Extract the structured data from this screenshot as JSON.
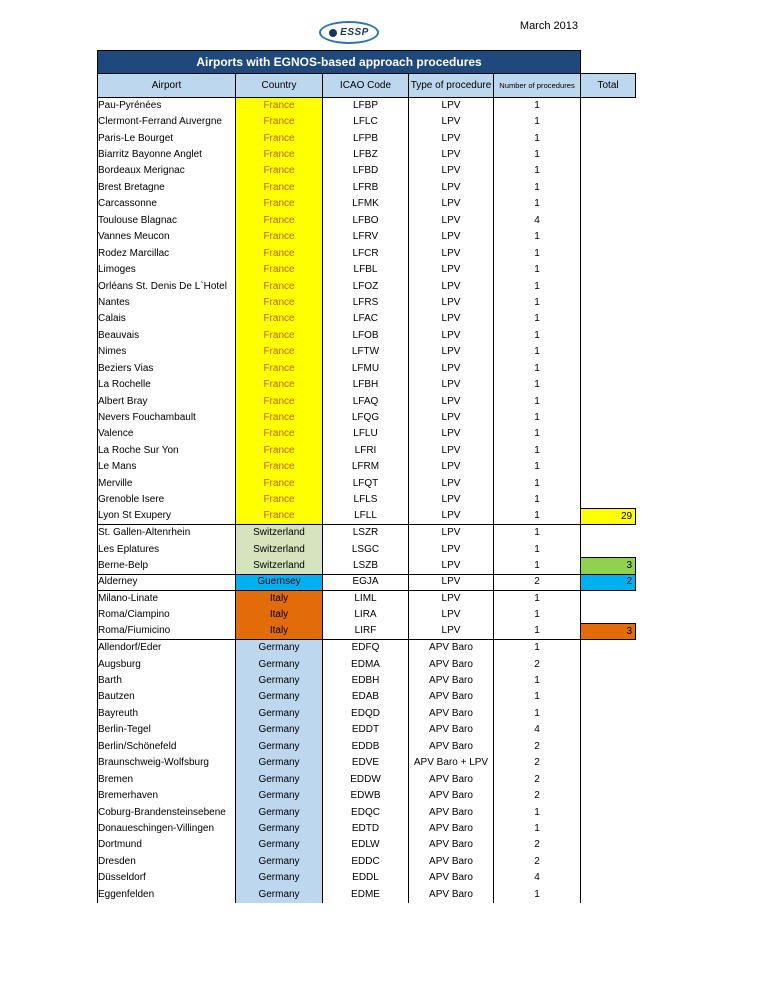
{
  "page": {
    "date": "March 2013",
    "logo_text": "ESSP"
  },
  "colors": {
    "title_bar": "#1F497D",
    "header_fill": "#BDD7EE"
  },
  "table": {
    "title": "Airports with EGNOS-based approach procedures",
    "columns": [
      "Airport",
      "Country",
      "ICAO Code",
      "Type of procedure",
      "Number of procedures",
      "Total"
    ],
    "groups": [
      {
        "country": "France",
        "country_bg": "#FFFF00",
        "country_text": "#C06000",
        "total": "29",
        "total_bg": "#FFFF00",
        "rows": [
          {
            "airport": "Pau-Pyrénées",
            "icao": "LFBP",
            "type": "LPV",
            "count": "1"
          },
          {
            "airport": "Clermont-Ferrand Auvergne",
            "icao": "LFLC",
            "type": "LPV",
            "count": "1"
          },
          {
            "airport": "Paris-Le Bourget",
            "icao": "LFPB",
            "type": "LPV",
            "count": "1"
          },
          {
            "airport": "Biarritz Bayonne Anglet",
            "icao": "LFBZ",
            "type": "LPV",
            "count": "1"
          },
          {
            "airport": "Bordeaux Merignac",
            "icao": "LFBD",
            "type": "LPV",
            "count": "1"
          },
          {
            "airport": "Brest Bretagne",
            "icao": "LFRB",
            "type": "LPV",
            "count": "1"
          },
          {
            "airport": "Carcassonne",
            "icao": "LFMK",
            "type": "LPV",
            "count": "1"
          },
          {
            "airport": "Toulouse Blagnac",
            "icao": "LFBO",
            "type": "LPV",
            "count": "4"
          },
          {
            "airport": "Vannes Meucon",
            "icao": "LFRV",
            "type": "LPV",
            "count": "1"
          },
          {
            "airport": "Rodez Marcillac",
            "icao": "LFCR",
            "type": "LPV",
            "count": "1"
          },
          {
            "airport": "Limoges",
            "icao": "LFBL",
            "type": "LPV",
            "count": "1"
          },
          {
            "airport": "Orléans St. Denis De L`Hotel",
            "icao": "LFOZ",
            "type": "LPV",
            "count": "1"
          },
          {
            "airport": "Nantes",
            "icao": "LFRS",
            "type": "LPV",
            "count": "1"
          },
          {
            "airport": "Calais",
            "icao": "LFAC",
            "type": "LPV",
            "count": "1"
          },
          {
            "airport": "Beauvais",
            "icao": "LFOB",
            "type": "LPV",
            "count": "1"
          },
          {
            "airport": "Nimes",
            "icao": "LFTW",
            "type": "LPV",
            "count": "1"
          },
          {
            "airport": "Beziers Vias",
            "icao": "LFMU",
            "type": "LPV",
            "count": "1"
          },
          {
            "airport": "La Rochelle",
            "icao": "LFBH",
            "type": "LPV",
            "count": "1"
          },
          {
            "airport": "Albert Bray",
            "icao": "LFAQ",
            "type": "LPV",
            "count": "1"
          },
          {
            "airport": "Nevers Fouchambault",
            "icao": "LFQG",
            "type": "LPV",
            "count": "1"
          },
          {
            "airport": "Valence",
            "icao": "LFLU",
            "type": "LPV",
            "count": "1"
          },
          {
            "airport": "La Roche Sur Yon",
            "icao": "LFRI",
            "type": "LPV",
            "count": "1"
          },
          {
            "airport": "Le Mans",
            "icao": "LFRM",
            "type": "LPV",
            "count": "1"
          },
          {
            "airport": "Merville",
            "icao": "LFQT",
            "type": "LPV",
            "count": "1"
          },
          {
            "airport": "Grenoble Isere",
            "icao": "LFLS",
            "type": "LPV",
            "count": "1"
          },
          {
            "airport": "Lyon St Exupery",
            "icao": "LFLL",
            "type": "LPV",
            "count": "1"
          }
        ]
      },
      {
        "country": "Switzerland",
        "country_bg": "#D6E3BC",
        "country_text": "#000000",
        "total": "3",
        "total_bg": "#92D050",
        "rows": [
          {
            "airport": "St. Gallen-Altenrhein",
            "icao": "LSZR",
            "type": "LPV",
            "count": "1"
          },
          {
            "airport": "Les Eplatures",
            "icao": "LSGC",
            "type": "LPV",
            "count": "1"
          },
          {
            "airport": "Berne-Belp",
            "icao": "LSZB",
            "type": "LPV",
            "count": "1"
          }
        ]
      },
      {
        "country": "Guernsey",
        "country_bg": "#00B0F0",
        "country_text": "#000000",
        "total": "2",
        "total_bg": "#00B0F0",
        "rows": [
          {
            "airport": "Alderney",
            "icao": "EGJA",
            "type": "LPV",
            "count": "2"
          }
        ]
      },
      {
        "country": "Italy",
        "country_bg": "#E36C0A",
        "country_text": "#000000",
        "total": "3",
        "total_bg": "#E36C0A",
        "rows": [
          {
            "airport": "Milano-Linate",
            "icao": "LIML",
            "type": "LPV",
            "count": "1"
          },
          {
            "airport": "Roma/Ciampino",
            "icao": "LIRA",
            "type": "LPV",
            "count": "1"
          },
          {
            "airport": "Roma/Fiumicino",
            "icao": "LIRF",
            "type": "LPV",
            "count": "1"
          }
        ]
      },
      {
        "country": "Germany",
        "country_bg": "#BDD7EE",
        "country_text": "#000000",
        "total": null,
        "total_bg": null,
        "rows": [
          {
            "airport": "Allendorf/Eder",
            "icao": "EDFQ",
            "type": "APV Baro",
            "count": "1"
          },
          {
            "airport": "Augsburg",
            "icao": "EDMA",
            "type": "APV Baro",
            "count": "2"
          },
          {
            "airport": "Barth",
            "icao": "EDBH",
            "type": "APV Baro",
            "count": "1"
          },
          {
            "airport": "Bautzen",
            "icao": "EDAB",
            "type": "APV Baro",
            "count": "1"
          },
          {
            "airport": "Bayreuth",
            "icao": "EDQD",
            "type": "APV Baro",
            "count": "1"
          },
          {
            "airport": "Berlin-Tegel",
            "icao": "EDDT",
            "type": "APV Baro",
            "count": "4"
          },
          {
            "airport": "Berlin/Schönefeld",
            "icao": "EDDB",
            "type": "APV Baro",
            "count": "2"
          },
          {
            "airport": "Braunschweig-Wolfsburg",
            "icao": "EDVE",
            "type": "APV Baro + LPV",
            "count": "2"
          },
          {
            "airport": "Bremen",
            "icao": "EDDW",
            "type": "APV Baro",
            "count": "2"
          },
          {
            "airport": "Bremerhaven",
            "icao": "EDWB",
            "type": "APV Baro",
            "count": "2"
          },
          {
            "airport": "Coburg-Brandensteinsebene",
            "icao": "EDQC",
            "type": "APV Baro",
            "count": "1"
          },
          {
            "airport": "Donaueschingen-Villingen",
            "icao": "EDTD",
            "type": "APV Baro",
            "count": "1"
          },
          {
            "airport": "Dortmund",
            "icao": "EDLW",
            "type": "APV Baro",
            "count": "2"
          },
          {
            "airport": "Dresden",
            "icao": "EDDC",
            "type": "APV Baro",
            "count": "2"
          },
          {
            "airport": "Düsseldorf",
            "icao": "EDDL",
            "type": "APV Baro",
            "count": "4"
          },
          {
            "airport": "Eggenfelden",
            "icao": "EDME",
            "type": "APV Baro",
            "count": "1"
          }
        ]
      }
    ]
  }
}
